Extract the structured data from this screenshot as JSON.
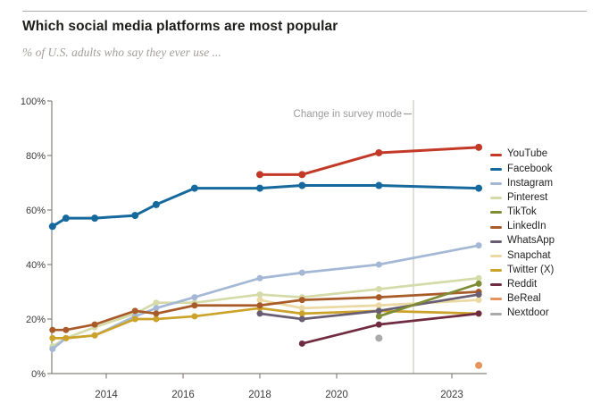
{
  "chart_data": {
    "type": "line",
    "title": "Which social media platforms are most popular",
    "subtitle": "% of U.S. adults who say they ever use ...",
    "xlabel": "",
    "ylabel": "",
    "grid": false,
    "legend_position": "right",
    "ylim": [
      0,
      100
    ],
    "xlim": [
      2012.55,
      2023.9
    ],
    "yticks": {
      "values": [
        0,
        20,
        40,
        60,
        80,
        100
      ],
      "labels": [
        "0%",
        "20%",
        "40%",
        "60%",
        "80%",
        "100%"
      ]
    },
    "xticks": {
      "values": [
        2014,
        2016,
        2018,
        2020,
        2023
      ],
      "labels": [
        "2014",
        "2016",
        "2018",
        "2020",
        "2023"
      ]
    },
    "annotation": {
      "label": "Change in survey mode",
      "x": 2022
    },
    "series": [
      {
        "name": "YouTube",
        "color": "#c23a27",
        "x": [
          2018.0,
          2019.1,
          2021.1,
          2023.7
        ],
        "values": [
          73,
          73,
          81,
          83
        ]
      },
      {
        "name": "Facebook",
        "color": "#16699c",
        "x": [
          2012.6,
          2012.95,
          2013.7,
          2014.75,
          2015.3,
          2016.3,
          2018.0,
          2019.1,
          2021.1,
          2023.7
        ],
        "values": [
          54,
          57,
          57,
          58,
          62,
          68,
          68,
          69,
          69,
          68
        ]
      },
      {
        "name": "Instagram",
        "color": "#a4b8d6",
        "x": [
          2012.6,
          2012.95,
          2013.7,
          2014.75,
          2015.3,
          2016.3,
          2018.0,
          2019.1,
          2021.1,
          2023.7
        ],
        "values": [
          9,
          13,
          14,
          21,
          24,
          28,
          35,
          37,
          40,
          47
        ]
      },
      {
        "name": "Pinterest",
        "color": "#d5dba8",
        "x": [
          2012.6,
          2012.95,
          2013.7,
          2014.75,
          2015.3,
          2016.3,
          2018.0,
          2019.1,
          2021.1,
          2023.7
        ],
        "values": [
          10,
          13,
          17,
          22,
          26,
          26,
          29,
          28,
          31,
          35
        ]
      },
      {
        "name": "TikTok",
        "color": "#7e8c35",
        "x": [
          2021.1,
          2023.7
        ],
        "values": [
          21,
          33
        ]
      },
      {
        "name": "LinkedIn",
        "color": "#a85b28",
        "x": [
          2012.6,
          2012.95,
          2013.7,
          2014.75,
          2015.3,
          2016.3,
          2018.0,
          2019.1,
          2021.1,
          2023.7
        ],
        "values": [
          16,
          16,
          18,
          23,
          22,
          25,
          25,
          27,
          28,
          30
        ]
      },
      {
        "name": "WhatsApp",
        "color": "#685d72",
        "x": [
          2018.0,
          2019.1,
          2021.1,
          2023.7
        ],
        "values": [
          22,
          20,
          23,
          29
        ]
      },
      {
        "name": "Snapchat",
        "color": "#ebd9a3",
        "x": [
          2018.0,
          2019.1,
          2021.1,
          2023.7
        ],
        "values": [
          27,
          24,
          25,
          27
        ]
      },
      {
        "name": "Twitter (X)",
        "color": "#cba32b",
        "x": [
          2012.6,
          2012.95,
          2013.7,
          2014.75,
          2015.3,
          2016.3,
          2018.0,
          2019.1,
          2021.1,
          2023.7
        ],
        "values": [
          13,
          13,
          14,
          20,
          20,
          21,
          24,
          22,
          23,
          22
        ]
      },
      {
        "name": "Reddit",
        "color": "#6f2b3f",
        "x": [
          2019.1,
          2021.1,
          2023.7
        ],
        "values": [
          11,
          18,
          22
        ]
      },
      {
        "name": "BeReal",
        "color": "#e6945e",
        "x": [
          2023.7
        ],
        "values": [
          3
        ]
      },
      {
        "name": "Nextdoor",
        "color": "#a9a9a9",
        "x": [
          2021.1
        ],
        "values": [
          13
        ]
      }
    ]
  },
  "style_colors": {
    "axis": "#85827c",
    "tick_label": "#3b3b3b",
    "annotation_text": "#9b9b9b",
    "annotation_line": "#c9c7c3",
    "title": "#1d1d1b",
    "subtitle": "#a2a09b"
  }
}
